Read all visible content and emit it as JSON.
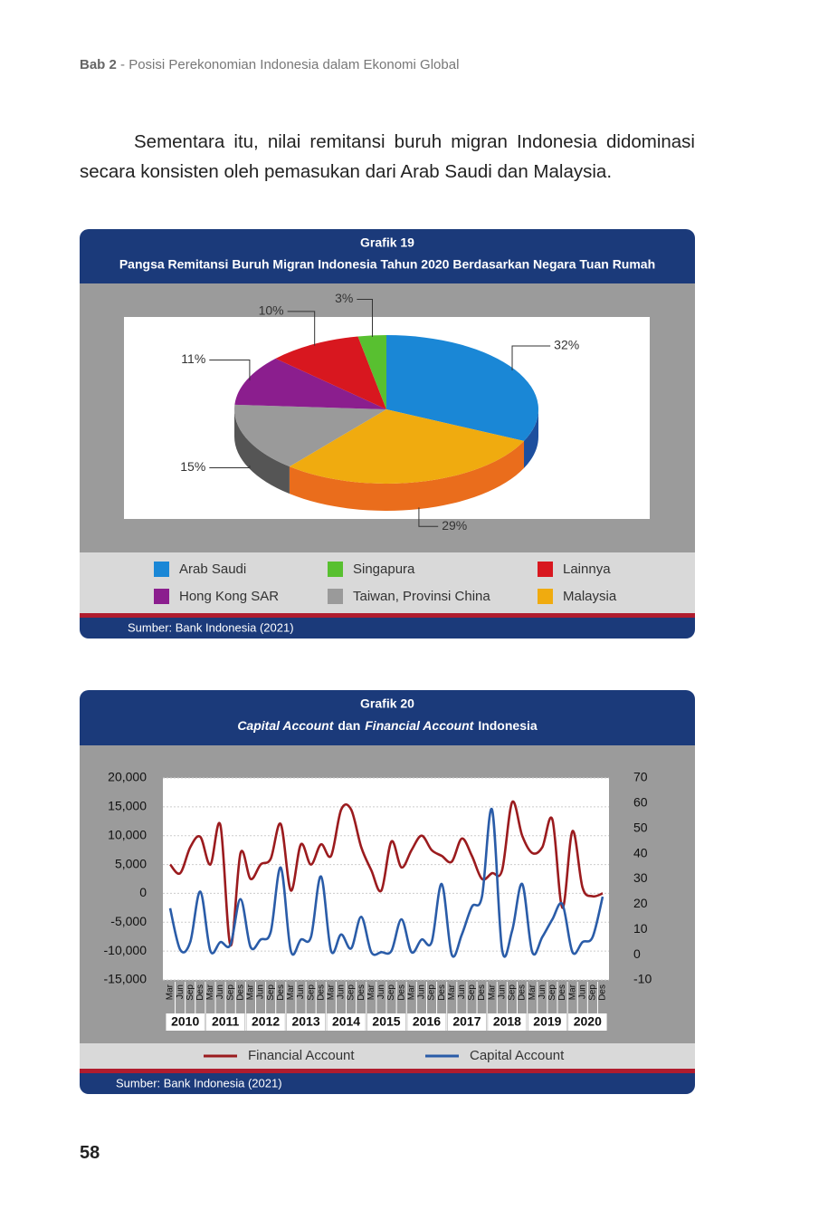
{
  "header": {
    "chapter": "Bab 2",
    "separator": "-",
    "title": "Posisi Perekonomian Indonesia dalam Ekonomi Global"
  },
  "paragraph": "Sementara itu, nilai remitansi buruh migran Indonesia didominasi secara konsisten oleh pemasukan dari Arab Saudi dan Malaysia.",
  "chart_data": [
    {
      "type": "pie",
      "title": "Grafik 19",
      "subtitle": "Pangsa Remitansi Buruh Migran Indonesia Tahun 2020 Berdasarkan Negara Tuan Rumah",
      "categories": [
        "Arab Saudi",
        "Malaysia",
        "Taiwan, Provinsi China",
        "Hong Kong SAR",
        "Lainnya",
        "Singapura"
      ],
      "values": [
        32,
        29,
        15,
        11,
        10,
        3
      ],
      "value_labels": [
        "32%",
        "29%",
        "15%",
        "11%",
        "10%",
        "3%"
      ],
      "colors": [
        "#1a87d6",
        "#f0ab0f",
        "#9a9a9a",
        "#8b1e8e",
        "#d8171f",
        "#58c030"
      ],
      "side_colors": [
        "#1d4f9e",
        "#ea6d1c",
        "#555555",
        "#5a1260",
        "#8c0e12",
        "#2f7a1a"
      ],
      "legend": "bottom",
      "source": "Sumber: Bank Indonesia (2021)"
    },
    {
      "type": "line",
      "title": "Grafik 20",
      "subtitle": [
        "Capital Account",
        "dan",
        "Financial Account",
        "Indonesia"
      ],
      "categories": [
        "Mar",
        "Jun",
        "Sep",
        "Des",
        "Mar",
        "Jun",
        "Sep",
        "Des",
        "Mar",
        "Jun",
        "Sep",
        "Des",
        "Mar",
        "Jun",
        "Sep",
        "Des",
        "Mar",
        "Jun",
        "Sep",
        "Des",
        "Mar",
        "Jun",
        "Sep",
        "Des",
        "Mar",
        "Jun",
        "Sep",
        "Des",
        "Mar",
        "Jun",
        "Sep",
        "Des",
        "Mar",
        "Jun",
        "Sep",
        "Des",
        "Mar",
        "Jun",
        "Sep",
        "Des",
        "Mar",
        "Jun",
        "Sep",
        "Des"
      ],
      "years": [
        "2010",
        "2011",
        "2012",
        "2013",
        "2014",
        "2015",
        "2016",
        "2017",
        "2018",
        "2019",
        "2020"
      ],
      "series": [
        {
          "name": "Financial Account",
          "color": "#9b1b1e",
          "values": [
            5000,
            3500,
            8000,
            9800,
            5000,
            11800,
            -9000,
            7000,
            2500,
            5000,
            6000,
            12000,
            500,
            8500,
            5000,
            8500,
            6500,
            14500,
            14500,
            8000,
            4000,
            500,
            9000,
            4500,
            7500,
            10000,
            7500,
            6500,
            5500,
            9500,
            6500,
            2500,
            3500,
            4000,
            15800,
            10000,
            7000,
            8000,
            12800,
            -2500,
            10800,
            1000,
            -500,
            0
          ]
        },
        {
          "name": "Capital Account",
          "color": "#2a5ca8",
          "axis": "y2",
          "values": [
            18.4,
            2,
            5,
            25,
            1.5,
            5,
            4,
            22,
            3,
            6,
            9,
            34.5,
            1.5,
            6,
            7,
            31,
            1.5,
            8,
            2.5,
            15,
            1,
            1,
            1.5,
            14,
            1,
            6,
            5,
            28,
            0,
            8,
            19,
            23,
            57.5,
            2,
            9.5,
            28,
            1,
            7,
            14,
            20,
            1,
            5,
            7,
            23
          ]
        }
      ],
      "ylim": [
        -15000,
        20000
      ],
      "yticks": [
        {
          "value": -15000,
          "label": "-15,000"
        },
        {
          "value": -10000,
          "label": "-10,000"
        },
        {
          "value": -5000,
          "label": "-5,000"
        },
        0,
        {
          "value": 5000,
          "label": "5,000"
        },
        {
          "value": 10000,
          "label": "10,000"
        },
        {
          "value": 15000,
          "label": "15,000"
        },
        {
          "value": 20000,
          "label": "20,000"
        }
      ],
      "y2lim": [
        -10,
        70
      ],
      "y2ticks": [
        -10,
        0,
        10,
        20,
        30,
        40,
        50,
        60,
        70
      ],
      "grid": true,
      "legend": "bottom",
      "source": "Sumber: Bank Indonesia (2021)"
    }
  ],
  "page_number": "58"
}
